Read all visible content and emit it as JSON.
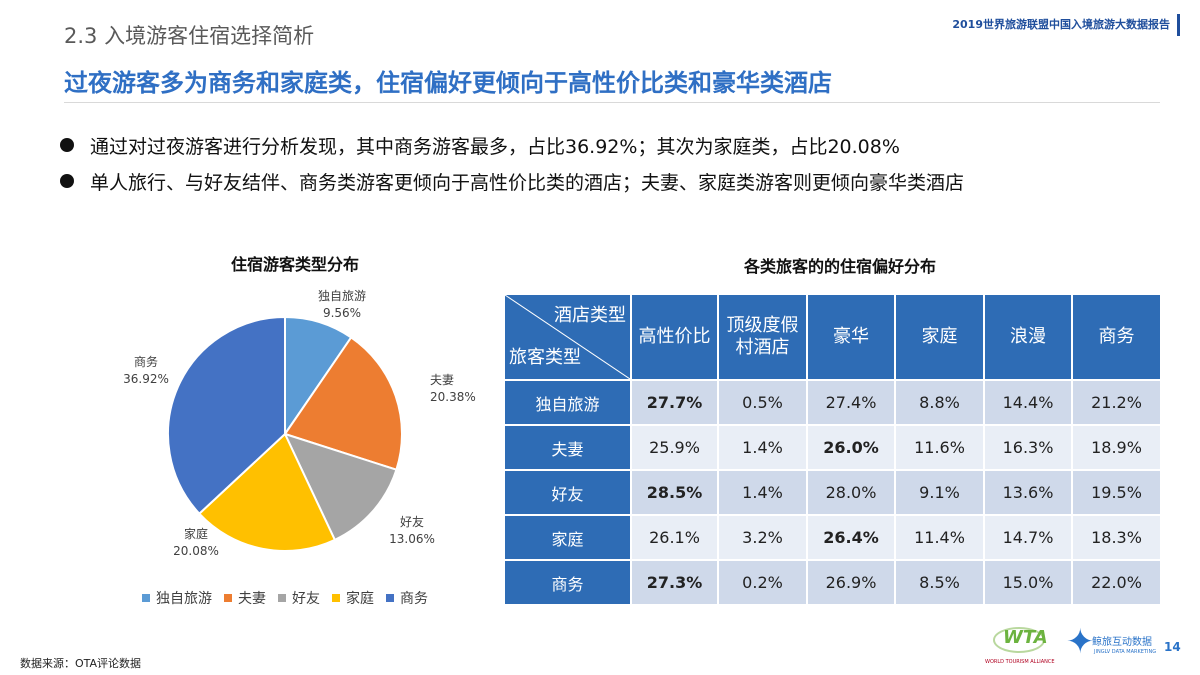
{
  "header": {
    "section_title": "2.3 入境游客住宿选择简析",
    "report_name": "2019世界旅游联盟中国入境旅游大数据报告",
    "headline": "过夜游客多为商务和家庭类，住宿偏好更倾向于高性价比类和豪华类酒店"
  },
  "bullets": [
    "通过对过夜游客进行分析发现，其中商务游客最多，占比36.92%；其次为家庭类，占比20.08%",
    "单人旅行、与好友结伴、商务类游客更倾向于高性价比类的酒店；夫妻、家庭类游客则更倾向豪华类酒店"
  ],
  "chart_data": [
    {
      "type": "pie",
      "title": "住宿游客类型分布",
      "labels": [
        "独自旅游",
        "夫妻",
        "好友",
        "家庭",
        "商务"
      ],
      "values": [
        9.56,
        20.38,
        13.06,
        20.08,
        36.92
      ],
      "value_labels": [
        "9.56%",
        "20.38%",
        "13.06%",
        "20.08%",
        "36.92%"
      ],
      "colors": [
        "#5b9bd5",
        "#ed7d31",
        "#a5a5a5",
        "#ffc000",
        "#4472c4"
      ],
      "legend": "bottom"
    },
    {
      "type": "table",
      "title": "各类旅客的的住宿偏好分布",
      "corner_top": "酒店类型",
      "corner_bottom": "旅客类型",
      "columns": [
        "高性价比",
        "顶级度假\n村酒店",
        "豪华",
        "家庭",
        "浪漫",
        "商务"
      ],
      "rows": [
        {
          "label": "独自旅游",
          "values": [
            "27.7%",
            "0.5%",
            "27.4%",
            "8.8%",
            "14.4%",
            "21.2%"
          ],
          "bold_index": 0
        },
        {
          "label": "夫妻",
          "values": [
            "25.9%",
            "1.4%",
            "26.0%",
            "11.6%",
            "16.3%",
            "18.9%"
          ],
          "bold_index": 2
        },
        {
          "label": "好友",
          "values": [
            "28.5%",
            "1.4%",
            "28.0%",
            "9.1%",
            "13.6%",
            "19.5%"
          ],
          "bold_index": 0
        },
        {
          "label": "家庭",
          "values": [
            "26.1%",
            "3.2%",
            "26.4%",
            "11.4%",
            "14.7%",
            "18.3%"
          ],
          "bold_index": 2
        },
        {
          "label": "商务",
          "values": [
            "27.3%",
            "0.2%",
            "26.9%",
            "8.5%",
            "15.0%",
            "22.0%"
          ],
          "bold_index": 0
        }
      ]
    }
  ],
  "footer": {
    "source": "数据来源：OTA评论数据",
    "page_number": "14",
    "wta_logo_text": "WTA",
    "wta_logo_name": "WORLD TOURISM ALLIANCE",
    "partner_logo_cn": "鲸旅互动数据",
    "partner_logo_en": "JINGLV DATA MARKETING"
  }
}
